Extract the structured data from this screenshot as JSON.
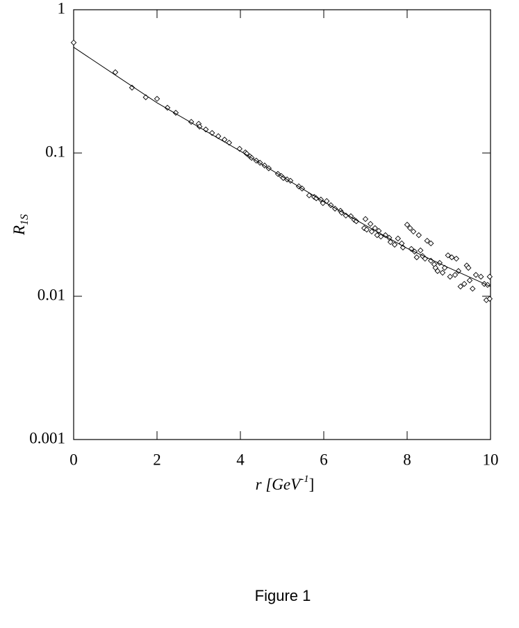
{
  "chart_data": {
    "type": "scatter",
    "ylabel": {
      "text": "R",
      "subscript": "1S"
    },
    "xlabel": {
      "text": "r [GeV",
      "superscript": "-1",
      "after": "]"
    },
    "xlim": [
      0,
      10
    ],
    "xticks": [
      0,
      2,
      4,
      6,
      8,
      10
    ],
    "ylim": [
      0.001,
      1
    ],
    "yticks": [
      0.001,
      0.01,
      0.1,
      1
    ],
    "ylog": true,
    "color": "#000000",
    "series": [
      {
        "mode": "markers",
        "x": [
          0,
          1.0,
          1.4,
          1.73,
          2.0,
          2.25,
          2.45,
          2.82,
          3.0,
          3.02,
          3.17,
          3.32,
          3.47,
          3.62,
          3.73,
          3.98,
          4.12,
          4.15,
          4.23,
          4.27,
          4.38,
          4.47,
          4.58,
          4.68,
          4.9,
          4.98,
          5.03,
          5.12,
          5.2,
          5.4,
          5.48,
          5.65,
          5.77,
          5.82,
          5.93,
          5.98,
          6.07,
          6.17,
          6.27,
          6.4,
          6.43,
          6.53,
          6.65,
          6.73,
          6.78,
          6.97,
          7.0,
          7.03,
          7.12,
          7.15,
          7.23,
          7.32,
          7.28,
          7.37,
          7.48,
          7.57,
          7.6,
          7.7,
          7.78,
          7.87,
          7.9,
          8.0,
          8.07,
          8.1,
          8.15,
          8.18,
          8.23,
          8.28,
          8.32,
          8.37,
          8.43,
          8.48,
          8.57,
          8.57,
          8.65,
          8.68,
          8.73,
          8.78,
          8.85,
          8.9,
          8.98,
          9.03,
          9.07,
          9.15,
          9.18,
          9.23,
          9.28,
          9.37,
          9.43,
          9.47,
          9.5,
          9.57,
          9.65,
          9.77,
          9.85,
          9.9,
          9.93,
          9.98,
          9.98
        ],
        "values": [
          0.59,
          0.366,
          0.286,
          0.245,
          0.239,
          0.207,
          0.191,
          0.165,
          0.16,
          0.153,
          0.146,
          0.138,
          0.131,
          0.124,
          0.118,
          0.107,
          0.101,
          0.099,
          0.0946,
          0.0925,
          0.0885,
          0.0855,
          0.0818,
          0.0782,
          0.0715,
          0.0691,
          0.0669,
          0.0654,
          0.064,
          0.0585,
          0.0565,
          0.0506,
          0.0494,
          0.0483,
          0.0473,
          0.0447,
          0.0462,
          0.0432,
          0.0409,
          0.0395,
          0.0383,
          0.0366,
          0.0362,
          0.0342,
          0.0334,
          0.0299,
          0.0346,
          0.0292,
          0.032,
          0.0283,
          0.0299,
          0.0286,
          0.0267,
          0.0261,
          0.0267,
          0.0256,
          0.0239,
          0.0229,
          0.0253,
          0.0234,
          0.0219,
          0.0316,
          0.0299,
          0.0214,
          0.0283,
          0.0205,
          0.0187,
          0.0267,
          0.0209,
          0.0191,
          0.0183,
          0.0244,
          0.0177,
          0.0234,
          0.0167,
          0.0158,
          0.015,
          0.0171,
          0.0146,
          0.0158,
          0.0193,
          0.0137,
          0.0187,
          0.0141,
          0.0183,
          0.015,
          0.0117,
          0.0122,
          0.0164,
          0.0158,
          0.0129,
          0.0113,
          0.0141,
          0.0137,
          0.0122,
          0.0094,
          0.012,
          0.0137,
          0.0096
        ]
      },
      {
        "mode": "line",
        "x": [
          0,
          1,
          2,
          3,
          4,
          5,
          6,
          7,
          8,
          9,
          10
        ],
        "values": [
          0.547,
          0.35,
          0.224,
          0.152,
          0.103,
          0.0686,
          0.0457,
          0.0313,
          0.0216,
          0.0158,
          0.0117
        ]
      }
    ]
  },
  "caption": "Figure 1"
}
